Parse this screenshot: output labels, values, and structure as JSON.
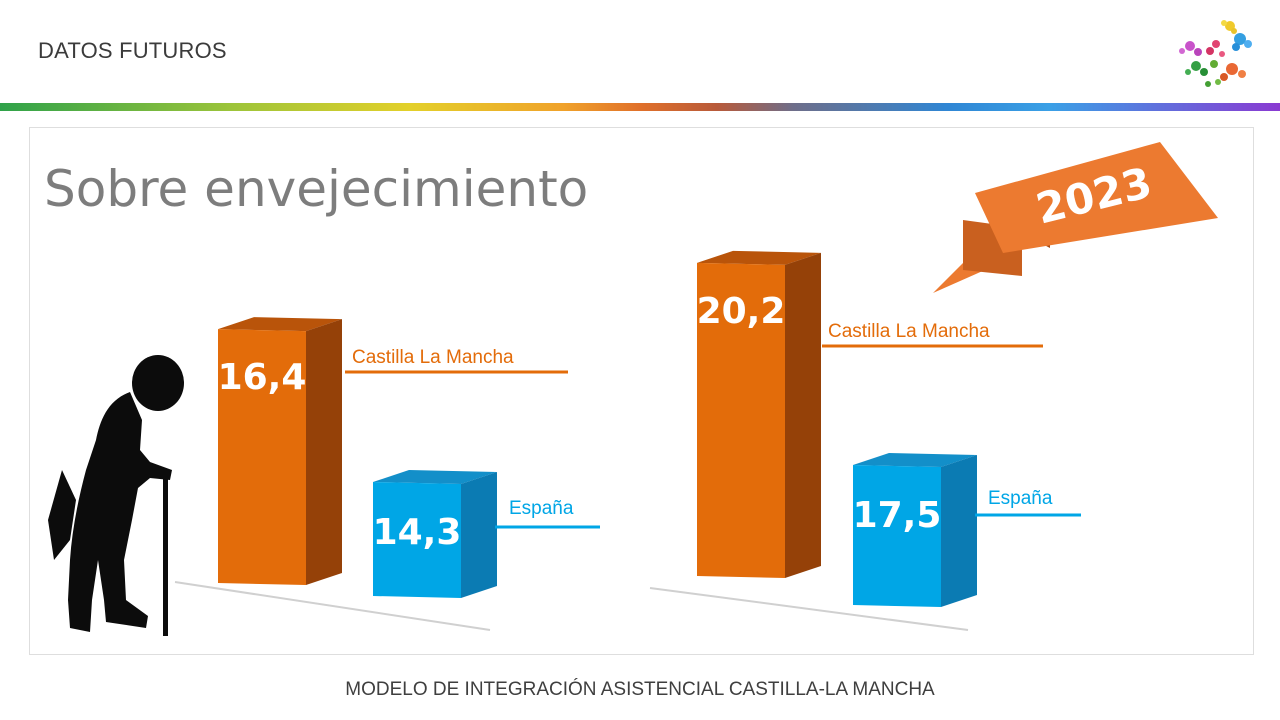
{
  "header": {
    "title": "DATOS FUTUROS"
  },
  "slide": {
    "title": "Sobre envejecimiento",
    "ribbon_label": "2023"
  },
  "footer": {
    "text": "MODELO DE INTEGRACIÓN ASISTENCIAL CASTILLA-LA MANCHA"
  },
  "colors": {
    "castilla": "#e36c0a",
    "espana": "#00a6e6",
    "ribbon": "#ec7a30"
  },
  "chart_data": [
    {
      "type": "bar",
      "categories": [
        "Castilla La Mancha",
        "España"
      ],
      "values": [
        16.4,
        14.3
      ],
      "value_labels": [
        "16,4",
        "14,3"
      ],
      "title": "",
      "xlabel": "",
      "ylabel": ""
    },
    {
      "type": "bar",
      "categories": [
        "Castilla La Mancha",
        "España"
      ],
      "values": [
        20.2,
        17.5
      ],
      "value_labels": [
        "20,2",
        "17,5"
      ],
      "title": "",
      "xlabel": "",
      "ylabel": ""
    }
  ]
}
